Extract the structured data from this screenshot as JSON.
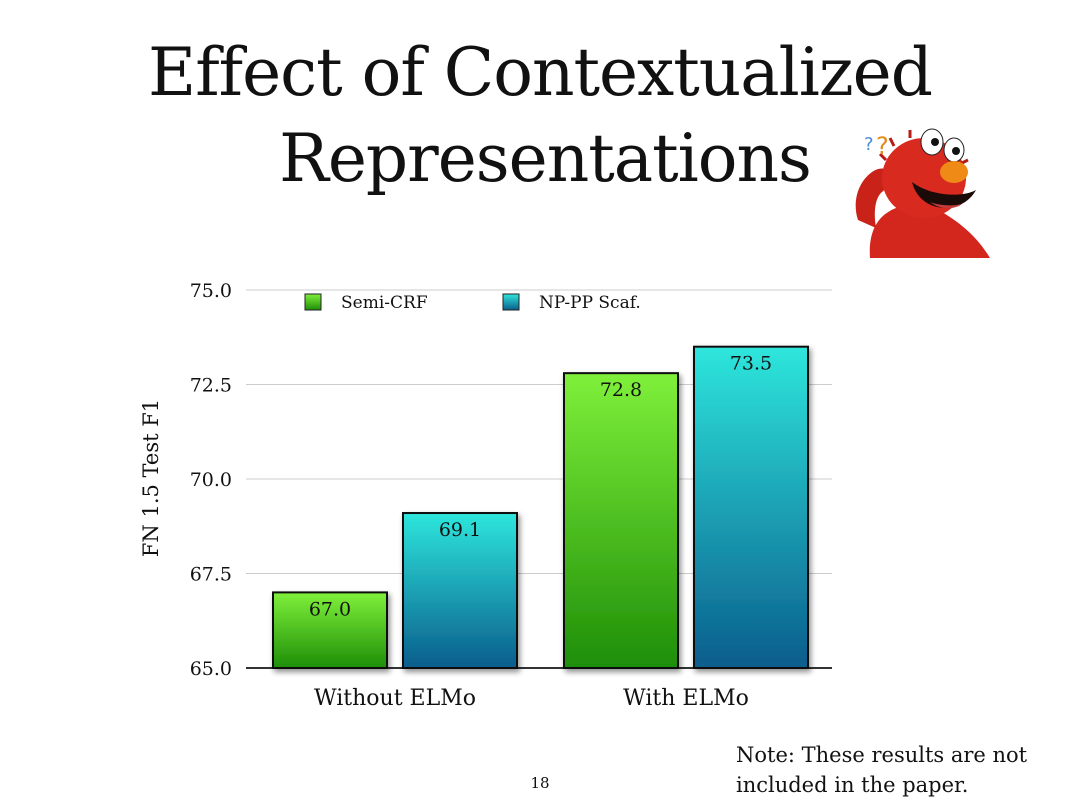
{
  "slide": {
    "title_line_1": "Effect of Contextualized",
    "title_line_2": "Representations",
    "note_line_1": "Note: These results are not",
    "note_line_2": "included in the paper.",
    "page_number": "18"
  },
  "colors": {
    "semi_crf": "#2fa50e",
    "np_pp_scaf": "#1a8fa6",
    "grid": "#cccccc",
    "axis": "#333333"
  },
  "chart_data": {
    "type": "bar",
    "title": "",
    "xlabel": "",
    "ylabel": "FN 1.5 Test F1",
    "categories": [
      "Without ELMo",
      "With ELMo"
    ],
    "series": [
      {
        "name": "Semi-CRF",
        "values": [
          67.0,
          72.8
        ],
        "labels": [
          "67.0",
          "72.8"
        ]
      },
      {
        "name": "NP-PP Scaf.",
        "values": [
          69.1,
          73.5
        ],
        "labels": [
          "69.1",
          "73.5"
        ]
      }
    ],
    "ylim": [
      65.0,
      75.0
    ],
    "yticks": [
      65.0,
      67.5,
      70.0,
      72.5,
      75.0
    ],
    "ytick_labels": [
      "65.0",
      "67.5",
      "70.0",
      "72.5",
      "75.0"
    ],
    "grid": true,
    "legend_position": "top"
  }
}
